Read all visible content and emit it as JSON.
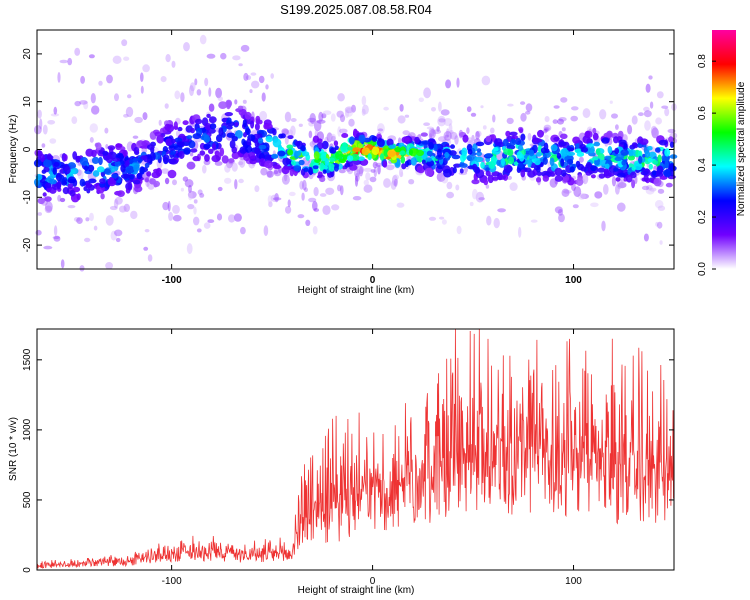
{
  "title": "S199.2025.087.08.58.R04",
  "colors": {
    "snr_line": "#ee3333",
    "axis": "#000000",
    "background": "#ffffff",
    "colormap": [
      "#ffffff",
      "#7000ff",
      "#0000ff",
      "#00ffff",
      "#00ff00",
      "#ffff00",
      "#ff0000",
      "#ff00a0"
    ]
  },
  "chart_data": [
    {
      "type": "heatmap",
      "xlabel": "Height of straight line (km)",
      "ylabel": "Frequency (Hz)",
      "xlim": [
        -167,
        150
      ],
      "ylim": [
        -25,
        25
      ],
      "x_ticks": [
        "-100",
        "0",
        "100"
      ],
      "y_ticks": [
        "-20",
        "-10",
        "0",
        "10",
        "20"
      ],
      "colorbar": {
        "label": "Normalized spectral amplitude",
        "range": [
          0.0,
          0.92
        ],
        "ticks": [
          "0.0",
          "0.2",
          "0.4",
          "0.6",
          "0.8"
        ]
      },
      "ridge": [
        {
          "x": -160,
          "f": -5,
          "amp": 0.35,
          "spread": 3.5
        },
        {
          "x": -150,
          "f": -5,
          "amp": 0.35,
          "spread": 3.5
        },
        {
          "x": -140,
          "f": -5,
          "amp": 0.38,
          "spread": 3.5
        },
        {
          "x": -130,
          "f": -4,
          "amp": 0.35,
          "spread": 3.5
        },
        {
          "x": -120,
          "f": -4,
          "amp": 0.33,
          "spread": 3.5
        },
        {
          "x": -110,
          "f": -2,
          "amp": 0.3,
          "spread": 3.5
        },
        {
          "x": -100,
          "f": 0,
          "amp": 0.28,
          "spread": 4.0
        },
        {
          "x": -90,
          "f": 2,
          "amp": 0.28,
          "spread": 4.0
        },
        {
          "x": -80,
          "f": 3,
          "amp": 0.3,
          "spread": 4.0
        },
        {
          "x": -70,
          "f": 4,
          "amp": 0.3,
          "spread": 4.0
        },
        {
          "x": -60,
          "f": 2,
          "amp": 0.32,
          "spread": 3.5
        },
        {
          "x": -50,
          "f": 1,
          "amp": 0.38,
          "spread": 3.0
        },
        {
          "x": -40,
          "f": -1,
          "amp": 0.5,
          "spread": 2.5
        },
        {
          "x": -30,
          "f": -2,
          "amp": 0.55,
          "spread": 2.5
        },
        {
          "x": -20,
          "f": -2,
          "amp": 0.6,
          "spread": 2.0
        },
        {
          "x": -10,
          "f": 0,
          "amp": 0.7,
          "spread": 2.0
        },
        {
          "x": -5,
          "f": 0,
          "amp": 0.9,
          "spread": 1.5
        },
        {
          "x": 0,
          "f": 0,
          "amp": 0.85,
          "spread": 1.5
        },
        {
          "x": 10,
          "f": -1,
          "amp": 0.8,
          "spread": 1.5
        },
        {
          "x": 20,
          "f": -1,
          "amp": 0.55,
          "spread": 2.0
        },
        {
          "x": 30,
          "f": -1,
          "amp": 0.45,
          "spread": 2.5
        },
        {
          "x": 40,
          "f": -2,
          "amp": 0.4,
          "spread": 3.0
        },
        {
          "x": 50,
          "f": -2,
          "amp": 0.42,
          "spread": 3.0
        },
        {
          "x": 60,
          "f": -2,
          "amp": 0.45,
          "spread": 3.0
        },
        {
          "x": 70,
          "f": -1,
          "amp": 0.48,
          "spread": 3.0
        },
        {
          "x": 80,
          "f": -1,
          "amp": 0.45,
          "spread": 3.0
        },
        {
          "x": 90,
          "f": -2,
          "amp": 0.45,
          "spread": 3.0
        },
        {
          "x": 100,
          "f": -2,
          "amp": 0.43,
          "spread": 3.0
        },
        {
          "x": 110,
          "f": -1,
          "amp": 0.45,
          "spread": 3.0
        },
        {
          "x": 120,
          "f": -2,
          "amp": 0.43,
          "spread": 3.0
        },
        {
          "x": 130,
          "f": -2,
          "amp": 0.48,
          "spread": 3.0
        },
        {
          "x": 140,
          "f": -2,
          "amp": 0.5,
          "spread": 3.0
        },
        {
          "x": 147,
          "f": -2,
          "amp": 0.45,
          "spread": 3.0
        }
      ]
    },
    {
      "type": "line",
      "xlabel": "Height of straight line (km)",
      "ylabel": "SNR (10 * v/v)",
      "xlim": [
        -167,
        150
      ],
      "ylim": [
        0,
        1720
      ],
      "x_ticks": [
        "-100",
        "0",
        "100"
      ],
      "y_ticks": [
        "0",
        "500",
        "1000",
        "1500"
      ],
      "series": [
        {
          "color": "#ee3333",
          "x": [
            -167,
            -160,
            -150,
            -140,
            -130,
            -120,
            -110,
            -100,
            -90,
            -80,
            -70,
            -60,
            -50,
            -40,
            -35,
            -30,
            -20,
            -10,
            0,
            10,
            20,
            30,
            40,
            50,
            60,
            70,
            80,
            90,
            100,
            110,
            120,
            130,
            140,
            150
          ],
          "baseline": [
            20,
            25,
            30,
            40,
            45,
            55,
            80,
            90,
            110,
            110,
            100,
            90,
            80,
            100,
            280,
            300,
            330,
            380,
            460,
            500,
            540,
            580,
            620,
            650,
            680,
            660,
            650,
            640,
            620,
            620,
            600,
            580,
            560,
            560
          ],
          "peak": [
            60,
            70,
            70,
            80,
            90,
            120,
            150,
            200,
            230,
            220,
            200,
            180,
            190,
            220,
            800,
            900,
            1000,
            1000,
            800,
            900,
            1100,
            1350,
            1500,
            1670,
            1650,
            1600,
            1500,
            1550,
            1450,
            1350,
            1450,
            1350,
            1250,
            1250
          ]
        }
      ]
    }
  ]
}
